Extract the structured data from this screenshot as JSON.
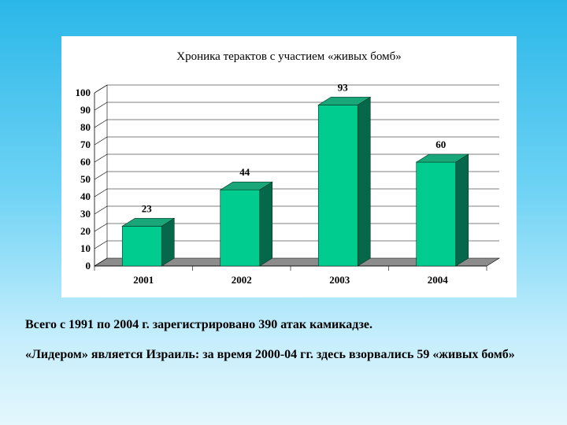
{
  "chart_data": {
    "type": "bar",
    "title": "Хроника терактов с участием «живых бомб»",
    "categories": [
      "2001",
      "2002",
      "2003",
      "2004"
    ],
    "values": [
      23,
      44,
      93,
      60
    ],
    "ylim": [
      0,
      100
    ],
    "yticks": [
      0,
      10,
      20,
      30,
      40,
      50,
      60,
      70,
      80,
      90,
      100
    ],
    "grid": true,
    "three_d": true,
    "xlabel": "",
    "ylabel": "",
    "colors": {
      "bar_front": "#00cc8f",
      "bar_top": "#19a679",
      "bar_side": "#06684a",
      "floor": "#8c8c8c",
      "grid": "#000000"
    }
  },
  "captions": {
    "line1": "Всего с 1991 по 2004 г. зарегистрировано 390 атак камикадзе.",
    "line2": "«Лидером» является Израиль: за время 2000-04 гг. здесь взорвались 59 «живых бомб»"
  }
}
